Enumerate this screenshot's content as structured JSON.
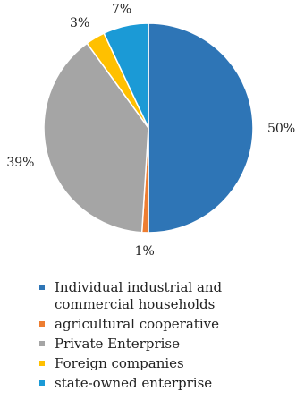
{
  "chart_data": {
    "type": "pie",
    "slices": [
      {
        "label": "Individual industrial and commercial households",
        "value": 50,
        "value_label": "50%",
        "color": "#2E75B6"
      },
      {
        "label": "agricultural cooperative",
        "value": 1,
        "value_label": "1%",
        "color": "#ED7D31"
      },
      {
        "label": "Private Enterprise",
        "value": 39,
        "value_label": "39%",
        "color": "#A5A5A5"
      },
      {
        "label": "Foreign companies",
        "value": 3,
        "value_label": "3%",
        "color": "#FFC000"
      },
      {
        "label": "state-owned enterprise",
        "value": 7,
        "value_label": "7%",
        "color": "#1B9AD6"
      }
    ],
    "legend_position": "bottom",
    "start_angle": "12 o'clock",
    "direction": "clockwise"
  }
}
